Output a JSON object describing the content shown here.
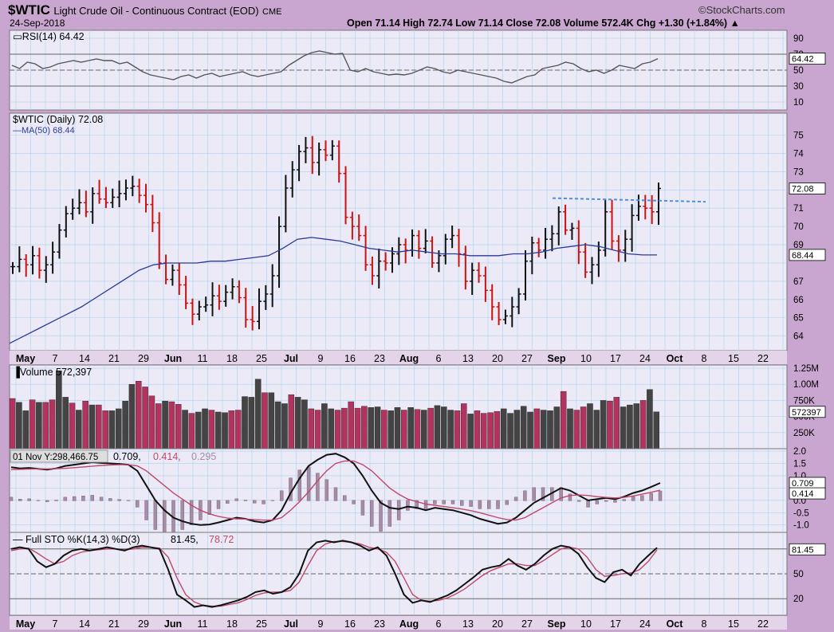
{
  "header": {
    "symbol": "$WTIC",
    "name": "Light Crude Oil - Continuous Contract (EOD)",
    "exchange": "CME",
    "date": "24-Sep-2018",
    "brand": "©StockCharts.com",
    "quote": "Open 71.14  High 72.74  Low 71.14  Close 72.08  Volume 572.4K  Chg +1.30 (+1.84%) ▲"
  },
  "chart_data": [
    {
      "type": "line",
      "panel": "rsi",
      "title": "RSI(14) 64.42",
      "last_label": "64.42",
      "ylim": [
        0,
        100
      ],
      "ticks": [
        "90",
        "70",
        "50",
        "30",
        "10"
      ],
      "reference_lines": [
        70,
        50,
        30
      ],
      "values": [
        56,
        52,
        60,
        58,
        52,
        54,
        58,
        60,
        62,
        60,
        62,
        64,
        62,
        62,
        58,
        60,
        54,
        48,
        44,
        42,
        40,
        38,
        42,
        44,
        40,
        44,
        46,
        42,
        44,
        46,
        48,
        44,
        42,
        44,
        46,
        48,
        56,
        62,
        68,
        72,
        74,
        72,
        70,
        71,
        50,
        48,
        52,
        48,
        46,
        44,
        45,
        44,
        46,
        50,
        54,
        52,
        48,
        46,
        50,
        48,
        46,
        44,
        42,
        40,
        36,
        34,
        38,
        42,
        44,
        52,
        54,
        56,
        60,
        58,
        52,
        48,
        50,
        46,
        50,
        56,
        54,
        52,
        58,
        60,
        64.42
      ]
    },
    {
      "type": "line",
      "panel": "price",
      "title": "$WTIC (Daily) 72.08",
      "ma_label": "MA(50) 68.44",
      "last_label": "72.08",
      "ma_last_label": "68.44",
      "ylim": [
        63.2,
        76.2
      ],
      "ticks": [
        "75",
        "74",
        "73",
        "72",
        "71",
        "70",
        "69",
        "68",
        "67",
        "66",
        "65",
        "64"
      ],
      "x_ticks": [
        "May",
        "7",
        "14",
        "21",
        "29",
        "Jun",
        "11",
        "18",
        "25",
        "Jul",
        "9",
        "16",
        "23",
        "Aug",
        "6",
        "13",
        "20",
        "27",
        "Sep",
        "10",
        "17",
        "24",
        "Oct",
        "8",
        "15",
        "22"
      ],
      "close": [
        67.8,
        68.2,
        67.9,
        68.4,
        67.6,
        67.9,
        68.6,
        69.8,
        70.7,
        71.0,
        71.3,
        70.8,
        71.8,
        71.5,
        71.3,
        71.6,
        71.8,
        72.1,
        72.2,
        71.7,
        71.2,
        70.2,
        68.0,
        67.1,
        67.6,
        66.8,
        65.8,
        65.2,
        65.6,
        65.7,
        66.2,
        65.9,
        66.4,
        66.7,
        66.1,
        64.9,
        64.8,
        65.9,
        66.3,
        67.3,
        70.0,
        72.1,
        73.1,
        74.1,
        74.3,
        73.5,
        74.2,
        73.9,
        74.4,
        72.9,
        70.5,
        70.0,
        69.5,
        67.9,
        67.3,
        68.1,
        68.0,
        68.5,
        69.0,
        68.7,
        69.5,
        68.8,
        69.2,
        68.0,
        68.4,
        69.3,
        69.5,
        68.5,
        67.0,
        67.6,
        67.3,
        66.5,
        65.6,
        64.9,
        65.1,
        65.6,
        66.3,
        68.1,
        69.1,
        68.7,
        69.3,
        69.6,
        70.8,
        69.8,
        69.9,
        68.6,
        67.5,
        67.9,
        68.7,
        70.8,
        69.2,
        68.7,
        69.3,
        70.6,
        71.1,
        71.0,
        70.8,
        72.08
      ],
      "ma50": [
        63.6,
        64.0,
        64.4,
        64.8,
        65.2,
        65.6,
        66.1,
        66.6,
        67.1,
        67.6,
        67.9,
        68.0,
        68.0,
        68.0,
        68.1,
        68.1,
        68.2,
        68.3,
        68.4,
        68.8,
        69.3,
        69.4,
        69.3,
        69.2,
        69.0,
        68.8,
        68.7,
        68.6,
        68.7,
        68.6,
        68.5,
        68.5,
        68.4,
        68.4,
        68.4,
        68.5,
        68.5,
        68.6,
        68.8,
        68.9,
        69.0,
        68.9,
        68.7,
        68.5,
        68.44,
        68.44
      ]
    },
    {
      "type": "bar",
      "panel": "volume",
      "title": "Volume 572,397",
      "last_label": "572397",
      "ylim": [
        0,
        1300000
      ],
      "ticks": [
        "1.25M",
        "1.00M",
        "750K",
        "500K",
        "250K"
      ],
      "values": [
        780000,
        720000,
        590000,
        760000,
        720000,
        720000,
        760000,
        1210000,
        800000,
        710000,
        600000,
        740000,
        680000,
        680000,
        590000,
        590000,
        620000,
        740000,
        1000000,
        1050000,
        960000,
        820000,
        700000,
        740000,
        730000,
        690000,
        600000,
        550000,
        570000,
        620000,
        600000,
        570000,
        560000,
        590000,
        600000,
        810000,
        800000,
        1080000,
        870000,
        870000,
        730000,
        700000,
        840000,
        800000,
        760000,
        620000,
        600000,
        700000,
        620000,
        600000,
        630000,
        730000,
        630000,
        660000,
        640000,
        650000,
        600000,
        590000,
        640000,
        600000,
        640000,
        610000,
        600000,
        630000,
        670000,
        650000,
        600000,
        590000,
        700000,
        540000,
        590000,
        550000,
        560000,
        580000,
        620000,
        550000,
        600000,
        660000,
        570000,
        620000,
        600000,
        590000,
        650000,
        890000,
        620000,
        600000,
        650000,
        700000,
        600000,
        750000,
        740000,
        800000,
        650000,
        680000,
        700000,
        750000,
        920000,
        572397
      ],
      "up": [
        0,
        1,
        1,
        0,
        1,
        0,
        0,
        1,
        1,
        0,
        1,
        0,
        1,
        0,
        0,
        1,
        1,
        1,
        1,
        0,
        0,
        0,
        0,
        1,
        0,
        0,
        1,
        0,
        1,
        1,
        0,
        1,
        1,
        0,
        0,
        1,
        1,
        1,
        0,
        1,
        1,
        1,
        0,
        1,
        1,
        0,
        0,
        1,
        1,
        0,
        0,
        0,
        0,
        0,
        1,
        1,
        0,
        1,
        1,
        0,
        1,
        0,
        1,
        0,
        1,
        1,
        1,
        0,
        0,
        1,
        0,
        0,
        0,
        0,
        1,
        1,
        1,
        1,
        1,
        0,
        1,
        1,
        1,
        0,
        1,
        0,
        0,
        1,
        1,
        1,
        0,
        0,
        1,
        1,
        1,
        0,
        1,
        1
      ]
    },
    {
      "type": "line",
      "panel": "macd",
      "title_prefix": "01 Nov Y:298,466.75",
      "title_v1": "0.709",
      "title_v2": "0.414",
      "title_v3": "0.295",
      "last_labels": [
        "0.709",
        "0.414"
      ],
      "ylim": [
        -1.3,
        2.1
      ],
      "ticks": [
        "2.0",
        "1.5",
        "1.0",
        "0.5",
        "0.0",
        "-0.5",
        "-1.0"
      ],
      "series": [
        {
          "values": [
            1.35,
            1.3,
            1.32,
            1.28,
            1.25,
            1.3,
            1.4,
            1.45,
            1.5,
            1.55,
            1.52,
            1.5,
            1.48,
            1.45,
            1.2,
            0.6,
            0.0,
            -0.4,
            -0.7,
            -0.85,
            -0.95,
            -1.0,
            -0.98,
            -0.9,
            -0.8,
            -0.7,
            -0.75,
            -0.85,
            -0.9,
            -0.8,
            -0.4,
            0.3,
            0.9,
            1.4,
            1.65,
            1.85,
            1.9,
            1.75,
            1.5,
            1.0,
            0.4,
            -0.1,
            -0.3,
            -0.35,
            -0.25,
            -0.3,
            -0.4,
            -0.3,
            -0.35,
            -0.4,
            -0.5,
            -0.6,
            -0.75,
            -0.85,
            -0.95,
            -0.9,
            -0.7,
            -0.4,
            -0.1,
            0.1,
            0.3,
            0.5,
            0.4,
            0.2,
            0.0,
            0.05,
            0.1,
            0.05,
            0.15,
            0.3,
            0.4,
            0.55,
            0.709
          ]
        },
        {
          "values": [
            1.25,
            1.26,
            1.27,
            1.28,
            1.28,
            1.29,
            1.3,
            1.33,
            1.36,
            1.39,
            1.42,
            1.44,
            1.45,
            1.45,
            1.4,
            1.2,
            0.9,
            0.6,
            0.3,
            0.05,
            -0.2,
            -0.4,
            -0.55,
            -0.65,
            -0.72,
            -0.75,
            -0.76,
            -0.78,
            -0.8,
            -0.8,
            -0.7,
            -0.4,
            -0.05,
            0.35,
            0.8,
            1.2,
            1.5,
            1.6,
            1.6,
            1.45,
            1.2,
            0.85,
            0.5,
            0.25,
            0.05,
            -0.05,
            -0.15,
            -0.2,
            -0.25,
            -0.3,
            -0.35,
            -0.42,
            -0.5,
            -0.6,
            -0.7,
            -0.78,
            -0.8,
            -0.7,
            -0.5,
            -0.3,
            -0.1,
            0.1,
            0.2,
            0.22,
            0.2,
            0.15,
            0.12,
            0.1,
            0.12,
            0.18,
            0.25,
            0.33,
            0.414
          ]
        }
      ]
    },
    {
      "type": "line",
      "panel": "stochastic",
      "title_prefix": "Full STO %K(14,3) %D(3)",
      "title_v1": "81.45",
      "title_v2": "78.72",
      "last_label": "81.45",
      "ylim": [
        0,
        100
      ],
      "ticks": [
        "80",
        "50",
        "20"
      ],
      "reference_lines": [
        80,
        50,
        20
      ],
      "series": [
        {
          "values": [
            80,
            82,
            80,
            65,
            58,
            62,
            72,
            78,
            80,
            78,
            80,
            82,
            80,
            78,
            82,
            84,
            82,
            80,
            55,
            25,
            18,
            10,
            12,
            10,
            12,
            15,
            18,
            22,
            28,
            30,
            26,
            28,
            34,
            50,
            78,
            88,
            90,
            88,
            90,
            88,
            84,
            78,
            82,
            72,
            50,
            25,
            15,
            18,
            16,
            20,
            24,
            30,
            38,
            46,
            55,
            58,
            60,
            68,
            60,
            55,
            62,
            72,
            80,
            84,
            82,
            74,
            58,
            45,
            40,
            52,
            55,
            48,
            62,
            72,
            81.45
          ]
        },
        {
          "values": [
            78,
            80,
            81,
            75,
            68,
            62,
            65,
            72,
            76,
            78,
            79,
            80,
            80,
            79,
            80,
            82,
            82,
            81,
            70,
            45,
            25,
            16,
            12,
            11,
            11,
            13,
            15,
            19,
            24,
            27,
            28,
            28,
            30,
            40,
            60,
            78,
            86,
            89,
            89,
            88,
            86,
            82,
            80,
            76,
            65,
            45,
            25,
            18,
            17,
            18,
            21,
            26,
            32,
            40,
            48,
            54,
            58,
            62,
            62,
            60,
            60,
            66,
            73,
            80,
            82,
            80,
            70,
            55,
            47,
            48,
            50,
            51,
            55,
            65,
            78.72
          ]
        }
      ]
    }
  ]
}
